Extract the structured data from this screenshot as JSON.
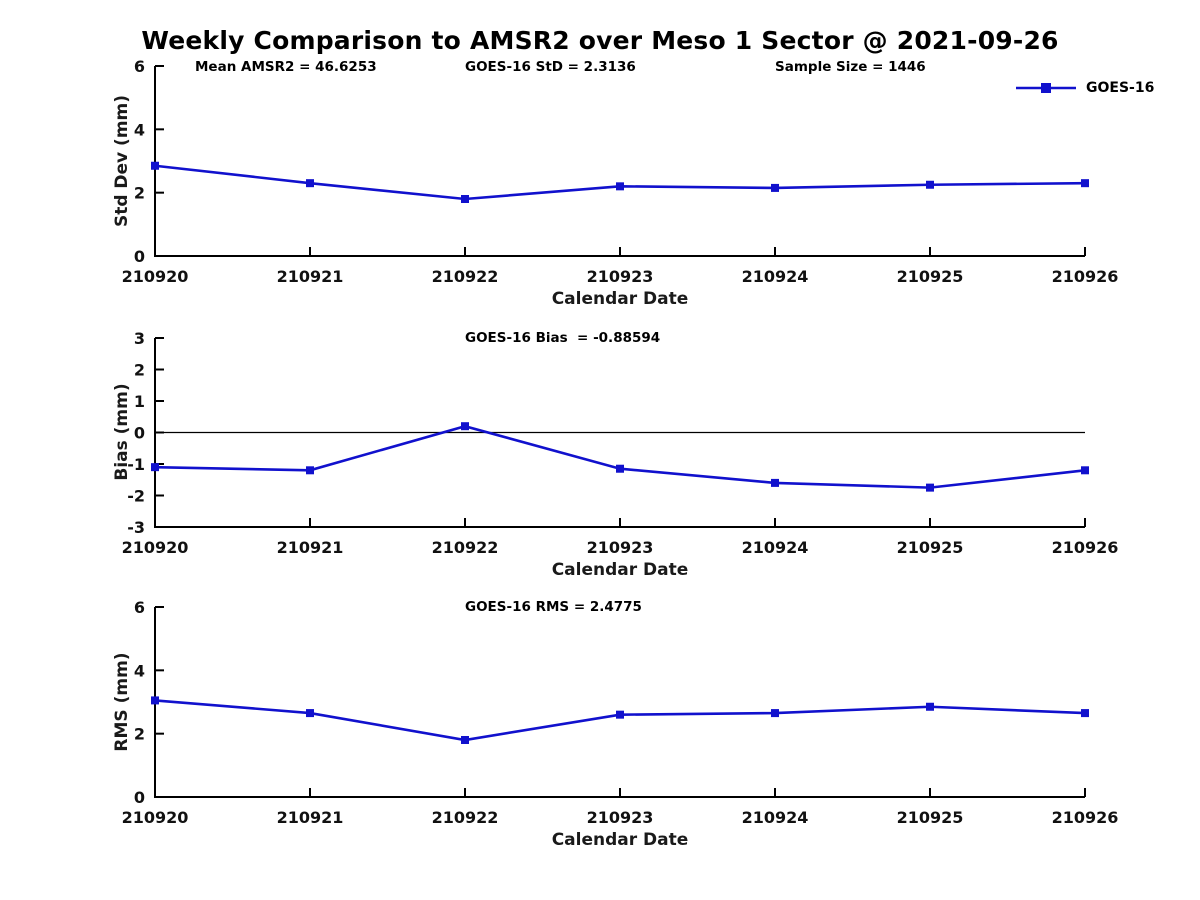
{
  "title": "Weekly Comparison to AMSR2 over Meso 1 Sector @ 2021-09-26",
  "legend": {
    "label": "GOES-16"
  },
  "colors": {
    "line": "#1111cd",
    "axis": "#000000",
    "background": "#ffffff"
  },
  "chart_data": [
    {
      "type": "line",
      "id": "std-dev",
      "annotations": [
        "Mean AMSR2 = 46.6253",
        "GOES-16 StD = 2.3136",
        "Sample Size = 1446"
      ],
      "categories": [
        "210920",
        "210921",
        "210922",
        "210923",
        "210924",
        "210925",
        "210926"
      ],
      "series": [
        {
          "name": "GOES-16",
          "values": [
            2.85,
            2.3,
            1.8,
            2.2,
            2.15,
            2.25,
            2.3
          ]
        }
      ],
      "xlabel": "Calendar Date",
      "ylabel": "Std Dev (mm)",
      "ylim": [
        0,
        6
      ],
      "yticks": [
        0,
        2,
        4,
        6
      ],
      "zero_line": false,
      "grid": false,
      "legend_position": "top-right"
    },
    {
      "type": "line",
      "id": "bias",
      "annotations": [
        "GOES-16 Bias  = -0.88594"
      ],
      "categories": [
        "210920",
        "210921",
        "210922",
        "210923",
        "210924",
        "210925",
        "210926"
      ],
      "series": [
        {
          "name": "GOES-16",
          "values": [
            -1.1,
            -1.2,
            0.2,
            -1.15,
            -1.6,
            -1.75,
            -1.2
          ]
        }
      ],
      "xlabel": "Calendar Date",
      "ylabel": "Bias (mm)",
      "ylim": [
        -3,
        3
      ],
      "yticks": [
        -3,
        -2,
        -1,
        0,
        1,
        2,
        3
      ],
      "zero_line": true,
      "grid": false,
      "legend_position": "none"
    },
    {
      "type": "line",
      "id": "rms",
      "annotations": [
        "GOES-16 RMS = 2.4775"
      ],
      "categories": [
        "210920",
        "210921",
        "210922",
        "210923",
        "210924",
        "210925",
        "210926"
      ],
      "series": [
        {
          "name": "GOES-16",
          "values": [
            3.05,
            2.65,
            1.8,
            2.6,
            2.65,
            2.85,
            2.65
          ]
        }
      ],
      "xlabel": "Calendar Date",
      "ylabel": "RMS (mm)",
      "ylim": [
        0,
        6
      ],
      "yticks": [
        0,
        2,
        4,
        6
      ],
      "zero_line": false,
      "grid": false,
      "legend_position": "none"
    }
  ]
}
